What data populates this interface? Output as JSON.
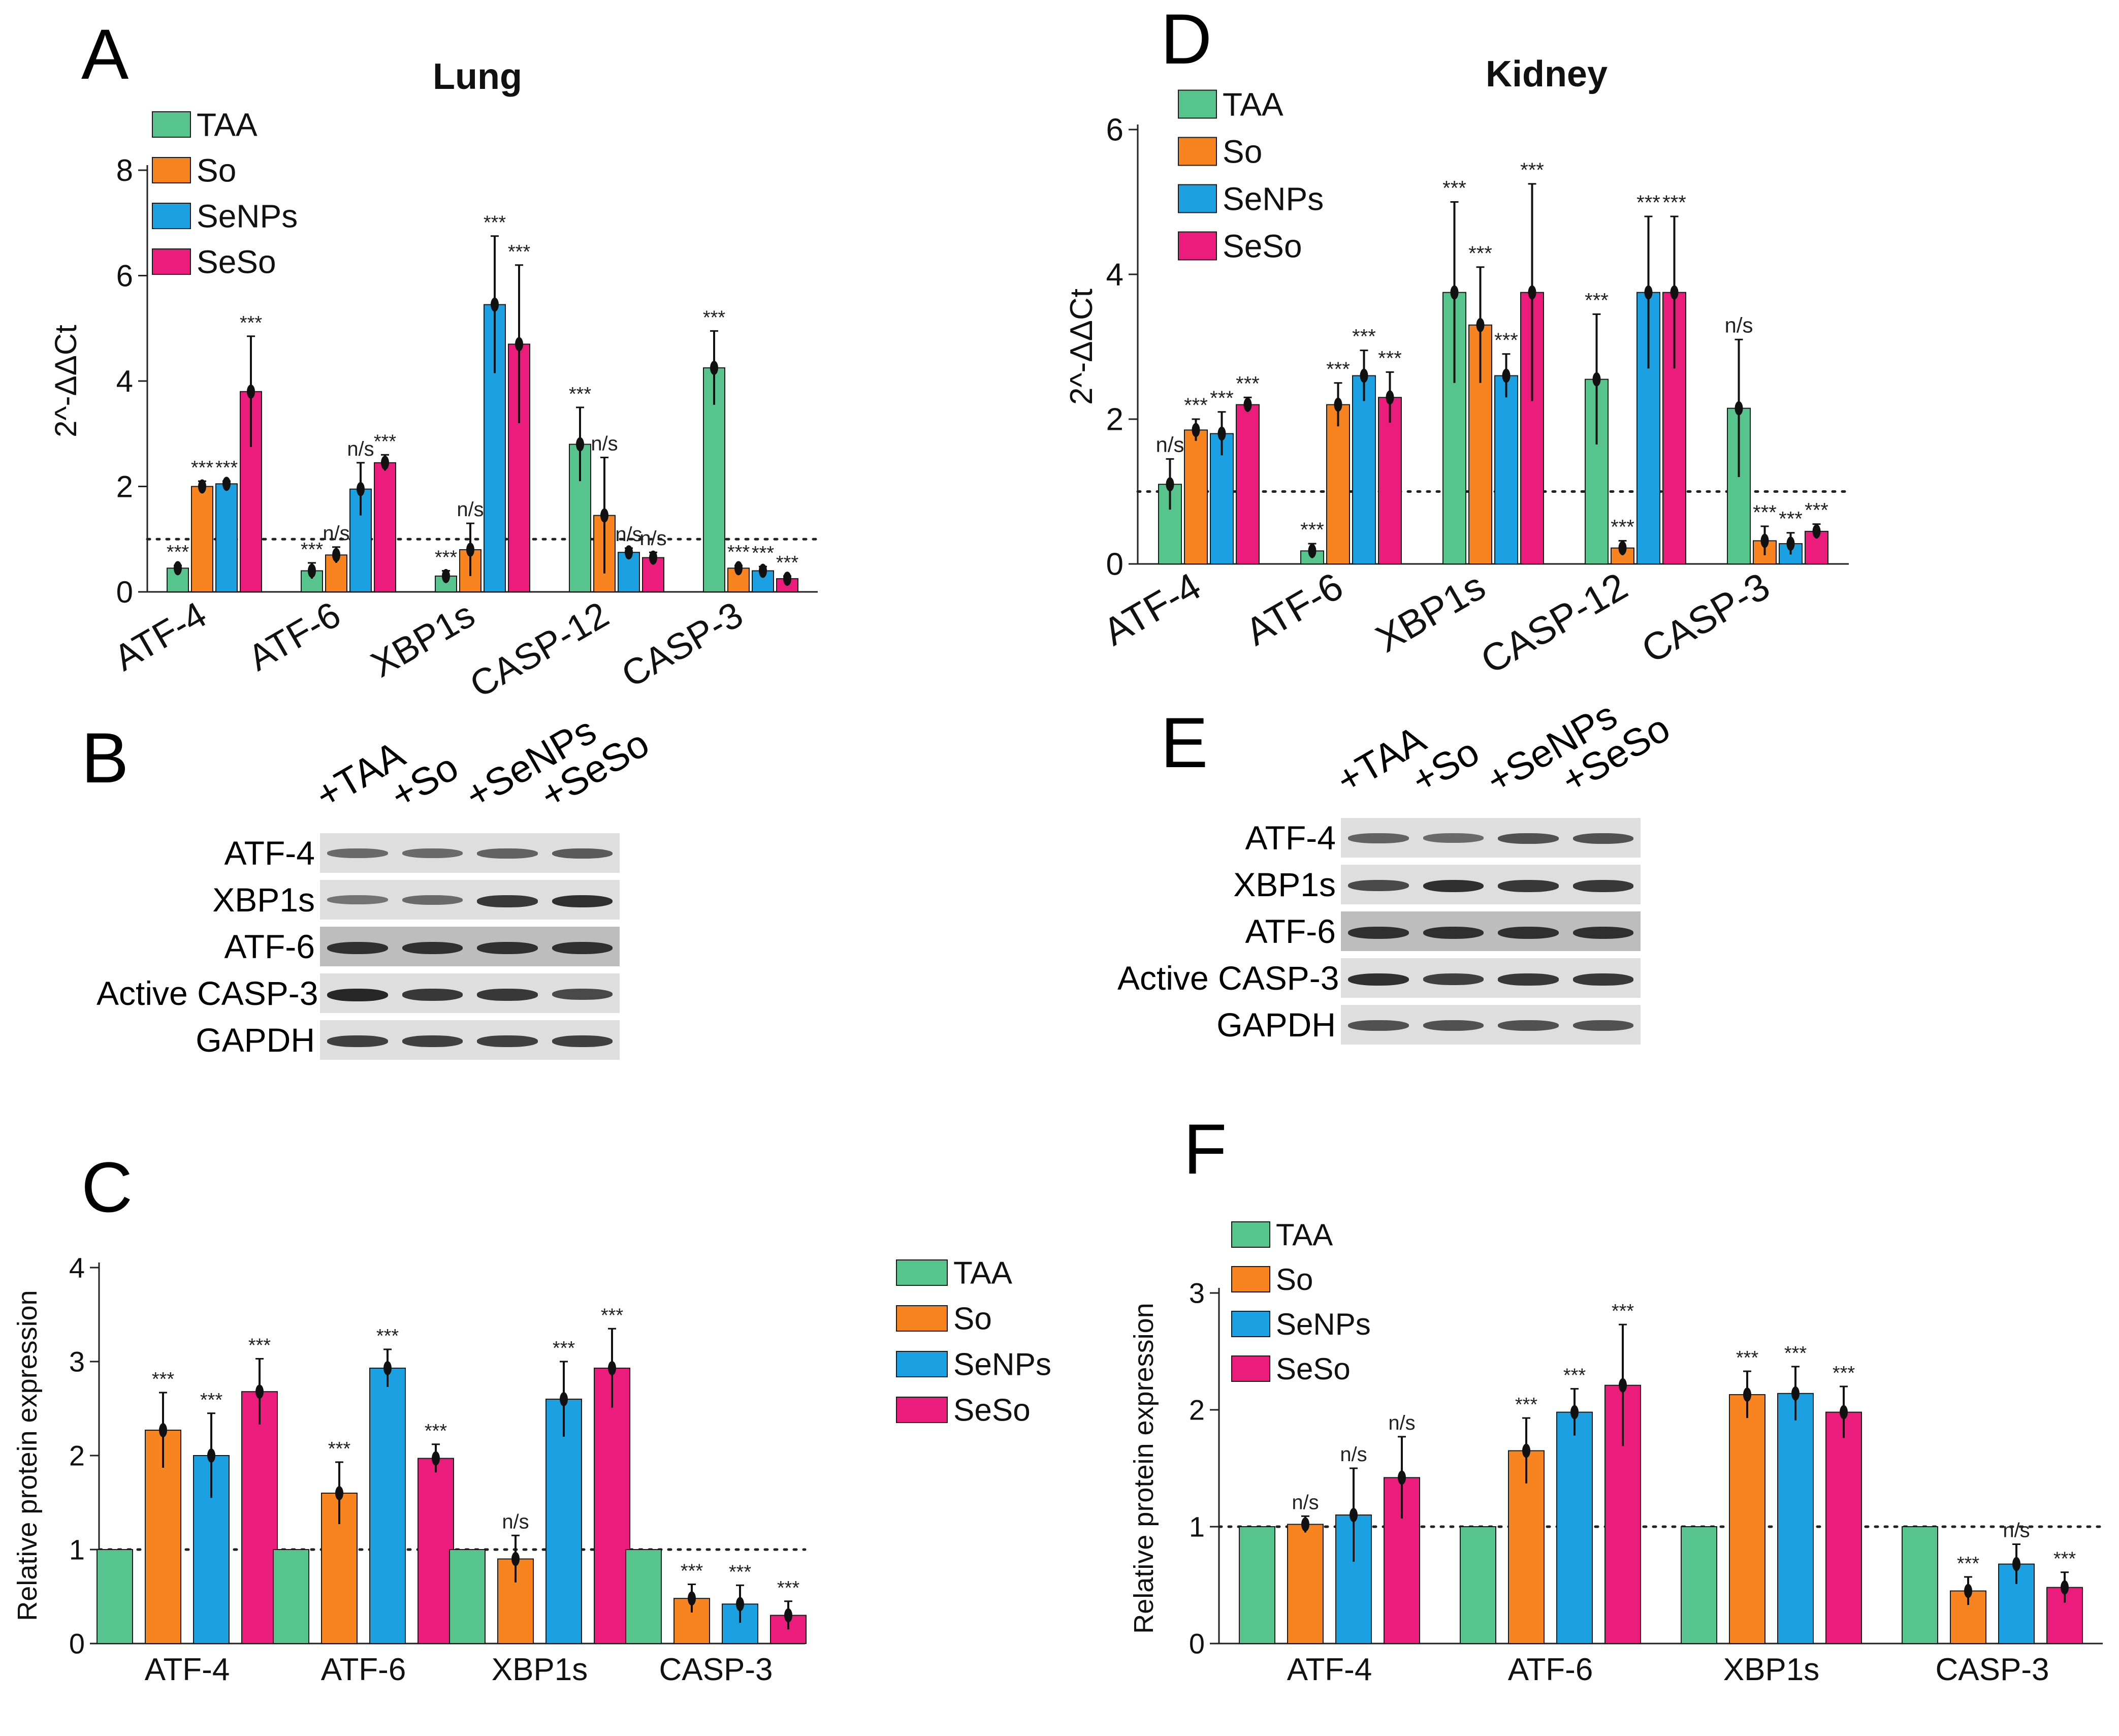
{
  "colors": {
    "TAA": "#56c48c",
    "So": "#f7841f",
    "SeNPs": "#1ba0e2",
    "SeSo": "#ec1c7c"
  },
  "legend_labels": [
    "TAA",
    "So",
    "SeNPs",
    "SeSo"
  ],
  "chart_data": [
    {
      "panel": "A",
      "type": "bar",
      "title": "Lung",
      "ylabel": "2^-ΔΔCt",
      "xlabel": "",
      "ylim": [
        0,
        8
      ],
      "yticks": [
        0,
        2,
        4,
        6,
        8
      ],
      "reference_line": 1,
      "categories": [
        "ATF-4",
        "ATF-6",
        "XBP1s",
        "CASP-12",
        "CASP-3"
      ],
      "rotate_xlabels": true,
      "series": [
        {
          "name": "TAA",
          "values": [
            0.45,
            0.4,
            0.3,
            2.8,
            4.25
          ],
          "errors": [
            0.05,
            0.15,
            0.1,
            0.7,
            0.7
          ],
          "labels": [
            "***",
            "***",
            "***",
            "***",
            "***"
          ]
        },
        {
          "name": "So",
          "values": [
            2.0,
            0.7,
            0.8,
            1.45,
            0.45
          ],
          "errors": [
            0.1,
            0.15,
            0.5,
            1.1,
            0.05
          ],
          "labels": [
            "***",
            "n/s",
            "n/s",
            "n/s",
            "***"
          ]
        },
        {
          "name": "SeNPs",
          "values": [
            2.05,
            1.95,
            5.45,
            0.75,
            0.4
          ],
          "errors": [
            0.05,
            0.5,
            1.3,
            0.08,
            0.08
          ],
          "labels": [
            "***",
            "n/s",
            "***",
            "n/s",
            "***"
          ]
        },
        {
          "name": "SeSo",
          "values": [
            3.8,
            2.45,
            4.7,
            0.65,
            0.25
          ],
          "errors": [
            1.05,
            0.15,
            1.5,
            0.1,
            0.05
          ],
          "labels": [
            "***",
            "***",
            "***",
            "n/s",
            "***"
          ]
        }
      ]
    },
    {
      "panel": "D",
      "type": "bar",
      "title": "Kidney",
      "ylabel": "2^-ΔΔCt",
      "xlabel": "",
      "ylim": [
        0,
        6
      ],
      "yticks": [
        0,
        2,
        4,
        6
      ],
      "reference_line": 1,
      "categories": [
        "ATF-4",
        "ATF-6",
        "XBP1s",
        "CASP-12",
        "CASP-3"
      ],
      "rotate_xlabels": true,
      "series": [
        {
          "name": "TAA",
          "values": [
            1.1,
            0.18,
            3.75,
            2.55,
            2.15
          ],
          "errors": [
            0.35,
            0.1,
            1.25,
            0.9,
            0.95
          ],
          "labels": [
            "n/s",
            "***",
            "***",
            "***",
            "n/s"
          ]
        },
        {
          "name": "So",
          "values": [
            1.85,
            2.2,
            3.3,
            0.22,
            0.32
          ],
          "errors": [
            0.15,
            0.3,
            0.8,
            0.1,
            0.2
          ],
          "labels": [
            "***",
            "***",
            "***",
            "***",
            "***"
          ]
        },
        {
          "name": "SeNPs",
          "values": [
            1.8,
            2.6,
            2.6,
            3.75,
            0.28
          ],
          "errors": [
            0.3,
            0.35,
            0.3,
            1.05,
            0.15
          ],
          "labels": [
            "***",
            "***",
            "***",
            "***",
            "***"
          ]
        },
        {
          "name": "SeSo",
          "values": [
            2.2,
            2.3,
            3.75,
            3.75,
            0.45
          ],
          "errors": [
            0.1,
            0.35,
            1.5,
            1.05,
            0.1
          ],
          "labels": [
            "***",
            "***",
            "***",
            "***",
            "***"
          ]
        }
      ]
    },
    {
      "panel": "C",
      "type": "bar",
      "title": "",
      "ylabel": "Relative protein expression",
      "xlabel": "",
      "ylim": [
        0,
        4
      ],
      "yticks": [
        0,
        1,
        2,
        3,
        4
      ],
      "reference_line": 1,
      "categories": [
        "ATF-4",
        "ATF-6",
        "XBP1s",
        "CASP-3"
      ],
      "rotate_xlabels": false,
      "series": [
        {
          "name": "TAA",
          "values": [
            1,
            1,
            1,
            1
          ],
          "errors": [
            0,
            0,
            0,
            0
          ],
          "labels": [
            "",
            "",
            "",
            ""
          ]
        },
        {
          "name": "So",
          "values": [
            2.27,
            1.6,
            0.9,
            0.48
          ],
          "errors": [
            0.4,
            0.33,
            0.25,
            0.15
          ],
          "labels": [
            "***",
            "***",
            "n/s",
            "***"
          ]
        },
        {
          "name": "SeNPs",
          "values": [
            2.0,
            2.93,
            2.6,
            0.42
          ],
          "errors": [
            0.45,
            0.2,
            0.4,
            0.2
          ],
          "labels": [
            "***",
            "***",
            "***",
            "***"
          ]
        },
        {
          "name": "SeSo",
          "values": [
            2.68,
            1.97,
            2.93,
            0.3
          ],
          "errors": [
            0.35,
            0.15,
            0.42,
            0.15
          ],
          "labels": [
            "***",
            "***",
            "***",
            "***"
          ]
        }
      ]
    },
    {
      "panel": "F",
      "type": "bar",
      "title": "",
      "ylabel": "Relative protein expression",
      "xlabel": "",
      "ylim": [
        0,
        3
      ],
      "yticks": [
        0,
        1,
        2,
        3
      ],
      "reference_line": 1,
      "categories": [
        "ATF-4",
        "ATF-6",
        "XBP1s",
        "CASP-3"
      ],
      "rotate_xlabels": false,
      "series": [
        {
          "name": "TAA",
          "values": [
            1,
            1,
            1,
            1
          ],
          "errors": [
            0,
            0,
            0,
            0
          ],
          "labels": [
            "",
            "",
            "",
            ""
          ]
        },
        {
          "name": "So",
          "values": [
            1.02,
            1.65,
            2.13,
            0.45
          ],
          "errors": [
            0.07,
            0.28,
            0.2,
            0.12
          ],
          "labels": [
            "n/s",
            "***",
            "***",
            "***"
          ]
        },
        {
          "name": "SeNPs",
          "values": [
            1.1,
            1.98,
            2.14,
            0.68
          ],
          "errors": [
            0.4,
            0.2,
            0.23,
            0.17
          ],
          "labels": [
            "n/s",
            "***",
            "***",
            "n/s"
          ]
        },
        {
          "name": "SeSo",
          "values": [
            1.42,
            2.21,
            1.98,
            0.48
          ],
          "errors": [
            0.35,
            0.52,
            0.22,
            0.13
          ],
          "labels": [
            "n/s",
            "***",
            "***",
            "***"
          ]
        }
      ]
    }
  ],
  "blots": [
    {
      "panel": "B",
      "lanes": [
        "+TAA",
        "+So",
        "+SeNPs",
        "+SeSo"
      ],
      "rows": [
        {
          "name": "ATF-4",
          "intensities": [
            0.55,
            0.55,
            0.6,
            0.65
          ]
        },
        {
          "name": "XBP1s",
          "intensities": [
            0.5,
            0.55,
            0.85,
            0.9
          ]
        },
        {
          "name": "ATF-6",
          "intensities": [
            0.9,
            0.9,
            0.9,
            0.9
          ]
        },
        {
          "name": "Active CASP-3",
          "intensities": [
            0.95,
            0.85,
            0.85,
            0.75
          ]
        },
        {
          "name": "GAPDH",
          "intensities": [
            0.8,
            0.8,
            0.8,
            0.8
          ]
        }
      ]
    },
    {
      "panel": "E",
      "lanes": [
        "+TAA",
        "+So",
        "+SeNPs",
        "+SeSo"
      ],
      "rows": [
        {
          "name": "ATF-4",
          "intensities": [
            0.6,
            0.55,
            0.7,
            0.7
          ]
        },
        {
          "name": "XBP1s",
          "intensities": [
            0.75,
            0.9,
            0.85,
            0.85
          ]
        },
        {
          "name": "ATF-6",
          "intensities": [
            0.9,
            0.9,
            0.9,
            0.9
          ]
        },
        {
          "name": "Active CASP-3",
          "intensities": [
            0.9,
            0.8,
            0.85,
            0.85
          ]
        },
        {
          "name": "GAPDH",
          "intensities": [
            0.7,
            0.7,
            0.7,
            0.7
          ]
        }
      ]
    }
  ]
}
